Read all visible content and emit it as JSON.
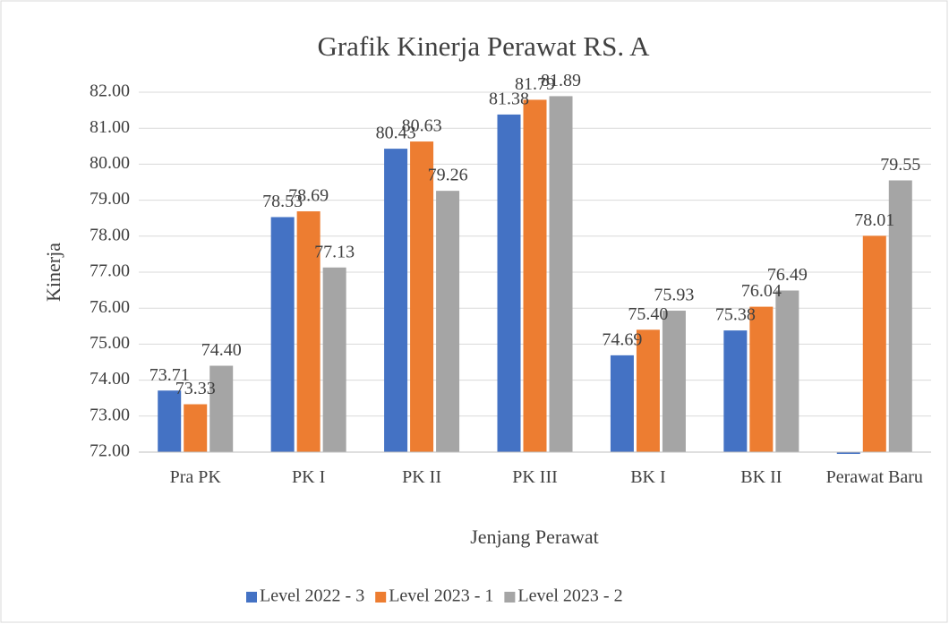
{
  "chart_data": {
    "type": "bar",
    "title": "Grafik Kinerja Perawat RS. A",
    "x_label": "Jenjang Perawat",
    "y_label": "Kinerja",
    "categories": [
      "Pra PK",
      "PK I",
      "PK II",
      "PK III",
      "BK I",
      "BK II",
      "Perawat Baru"
    ],
    "series": [
      {
        "name": "Level 2022 - 3",
        "color": "#4472c4",
        "values": [
          73.71,
          78.53,
          80.43,
          81.38,
          74.69,
          75.38,
          71.95
        ],
        "value_labels": [
          "73.71",
          "78.53",
          "80.43",
          "81.38",
          "74.69",
          "75.38",
          null
        ]
      },
      {
        "name": "Level 2023 - 1",
        "color": "#ed7d31",
        "values": [
          73.33,
          78.69,
          80.63,
          81.79,
          75.4,
          76.04,
          78.01
        ],
        "value_labels": [
          "73.33",
          "78.69",
          "80.63",
          "81.79",
          "75.40",
          "76.04",
          "78.01"
        ]
      },
      {
        "name": "Level 2023 - 2",
        "color": "#a5a5a5",
        "values": [
          74.4,
          77.13,
          79.26,
          81.89,
          75.93,
          76.49,
          79.55
        ],
        "value_labels": [
          "74.40",
          "77.13",
          "79.26",
          "81.89",
          "75.93",
          "76.49",
          "79.55"
        ]
      }
    ],
    "ylim": [
      72,
      82
    ],
    "yticks": [
      {
        "value": 72,
        "label": "72.00"
      },
      {
        "value": 73,
        "label": "73.00"
      },
      {
        "value": 74,
        "label": "74.00"
      },
      {
        "value": 75,
        "label": "75.00"
      },
      {
        "value": 76,
        "label": "76.00"
      },
      {
        "value": 77,
        "label": "77.00"
      },
      {
        "value": 78,
        "label": "78.00"
      },
      {
        "value": 79,
        "label": "79.00"
      },
      {
        "value": 80,
        "label": "80.00"
      },
      {
        "value": 81,
        "label": "81.00"
      },
      {
        "value": 82,
        "label": "82.00"
      }
    ],
    "grid": true,
    "legend": "bottom"
  }
}
